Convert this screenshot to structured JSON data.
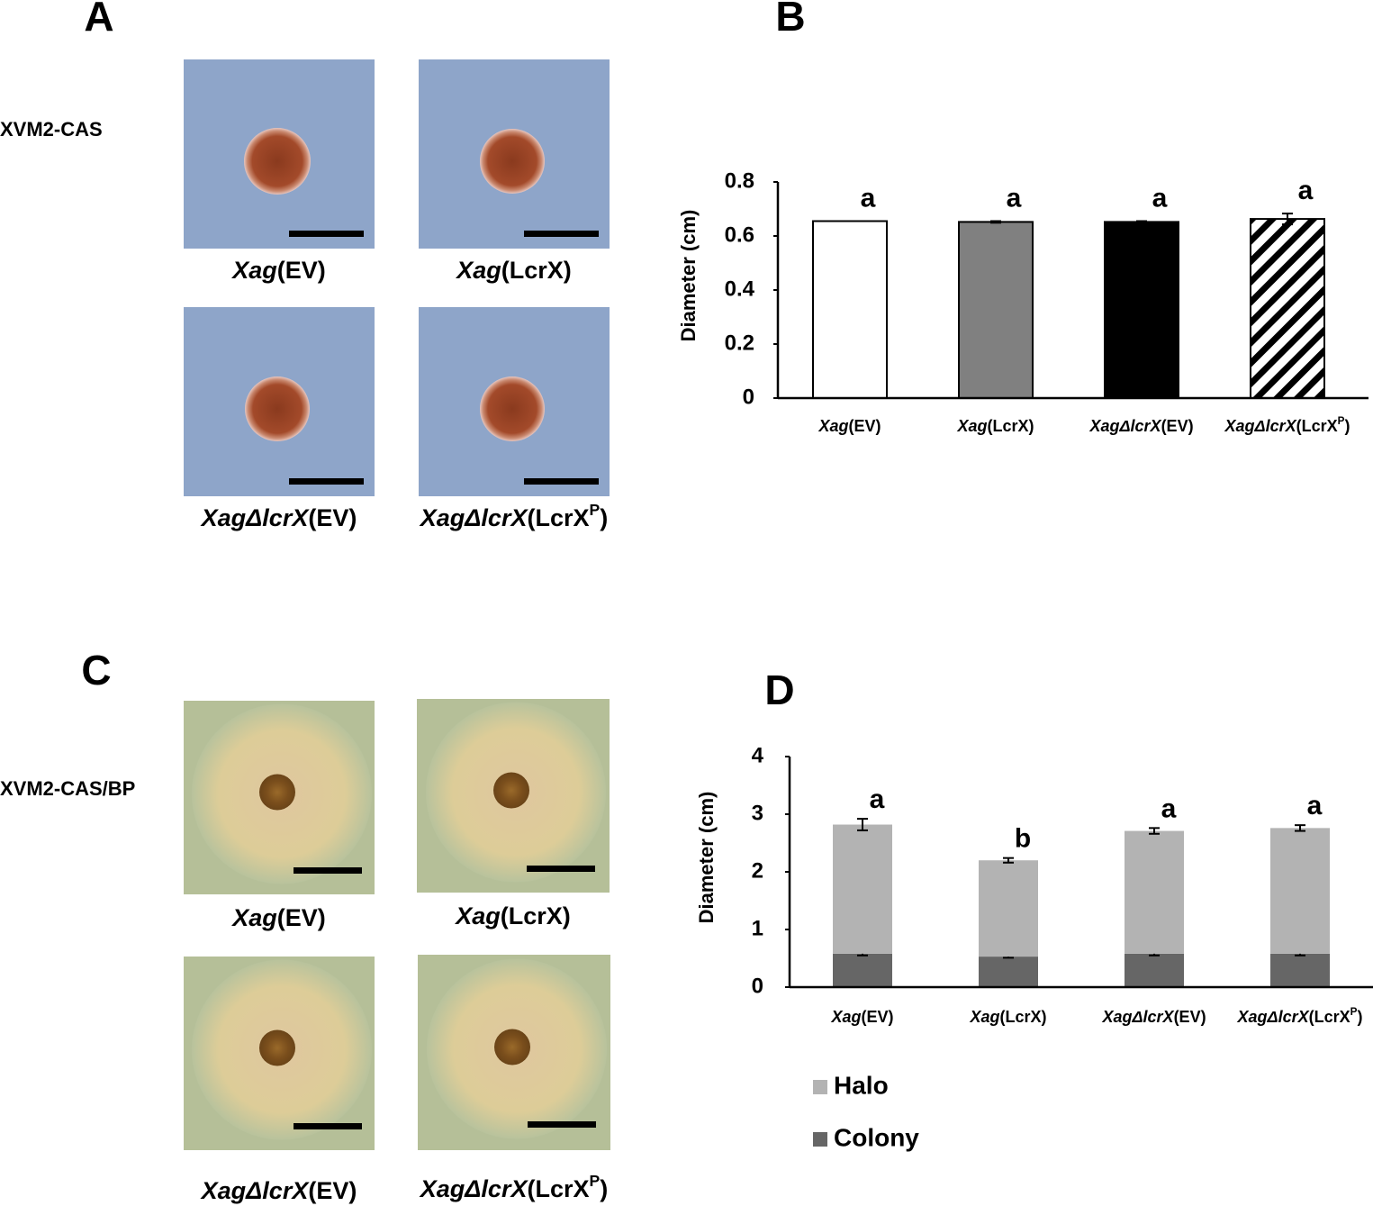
{
  "panels": {
    "a": "A",
    "b": "B",
    "c": "C",
    "d": "D"
  },
  "row_labels": [
    "XVM2-CAS",
    "XVM2-CAS/BP"
  ],
  "plate_labels": [
    [
      {
        "text": "Xag",
        "italic": true
      },
      {
        "text": "(EV)"
      }
    ],
    [
      {
        "text": "Xag",
        "italic": true
      },
      {
        "text": "(LcrX)"
      }
    ],
    [
      {
        "text": "XagΔlcrX",
        "italic": true
      },
      {
        "text": "(EV)"
      }
    ],
    [
      {
        "text": "XagΔlcrX",
        "italic": true
      },
      {
        "text": "(LcrX"
      },
      {
        "text": "P",
        "sup": true
      },
      {
        "text": ")"
      }
    ]
  ],
  "chart_data": [
    {
      "type": "bar",
      "y_label": "Diameter (cm)",
      "categories": [
        [
          {
            "text": "Xag",
            "italic": true
          },
          {
            "text": "(EV)"
          }
        ],
        [
          {
            "text": "Xag",
            "italic": true
          },
          {
            "text": "(LcrX)"
          }
        ],
        [
          {
            "text": "XagΔlcrX",
            "italic": true
          },
          {
            "text": "(EV)"
          }
        ],
        [
          {
            "text": "XagΔlcrX",
            "italic": true
          },
          {
            "text": "(LcrX"
          },
          {
            "text": "P",
            "sup": true
          },
          {
            "text": ")"
          }
        ]
      ],
      "values": [
        0.655,
        0.652,
        0.652,
        0.663
      ],
      "errors": [
        0,
        0.003,
        0.003,
        0.02
      ],
      "letters": [
        "a",
        "a",
        "a",
        "a"
      ],
      "colors": [
        "#ffffff",
        "#808080",
        "#000000",
        "#ffffff"
      ],
      "hatch": [
        false,
        false,
        false,
        true
      ],
      "ylim": [
        0,
        0.8
      ],
      "yticks": [
        0,
        0.2,
        0.4,
        0.6,
        0.8
      ]
    },
    {
      "type": "stacked_bar",
      "y_label": "Diameter (cm)",
      "categories": [
        [
          {
            "text": "Xag",
            "italic": true
          },
          {
            "text": "(EV)"
          }
        ],
        [
          {
            "text": "Xag",
            "italic": true
          },
          {
            "text": "(LcrX)"
          }
        ],
        [
          {
            "text": "XagΔlcrX",
            "italic": true
          },
          {
            "text": "(EV)"
          }
        ],
        [
          {
            "text": "XagΔlcrX",
            "italic": true
          },
          {
            "text": "(LcrX"
          },
          {
            "text": "P",
            "sup": true
          },
          {
            "text": ")"
          }
        ]
      ],
      "series": [
        {
          "name": "Colony",
          "color": "#666666",
          "values": [
            0.58,
            0.53,
            0.58,
            0.58
          ],
          "errors": [
            0.03,
            0.02,
            0.03,
            0.03
          ]
        },
        {
          "name": "Halo",
          "color": "#b3b3b3",
          "values": [
            2.24,
            1.67,
            2.13,
            2.18
          ],
          "errors": [
            0.1,
            0.04,
            0.05,
            0.05
          ]
        }
      ],
      "letters": [
        "a",
        "b",
        "a",
        "a"
      ],
      "ylim": [
        0,
        4
      ],
      "yticks": [
        0,
        1,
        2,
        3,
        4
      ],
      "legend": "bottom-left"
    }
  ]
}
